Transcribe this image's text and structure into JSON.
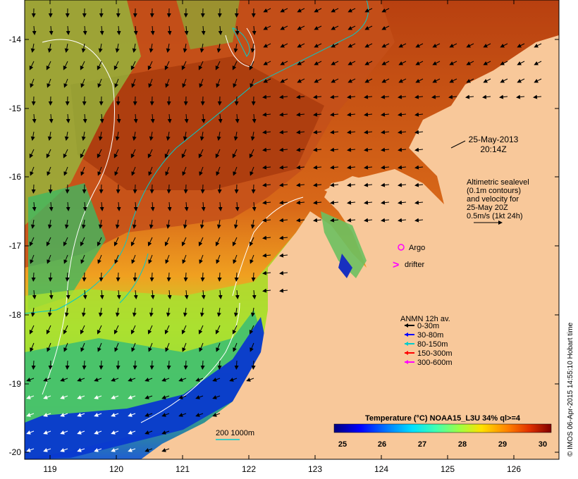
{
  "map": {
    "date_label": "25-May-2013",
    "time_label": "20:14Z",
    "altimetry_note": [
      "Altimetric sealevel",
      "(0.1m contours)",
      "and velocity for",
      "25-May 20Z",
      "0.5m/s (1kt 24h)"
    ],
    "argo_label": "Argo",
    "drifter_label": "drifter",
    "anmn_title": "ANMN 12h av.",
    "anmn_legend": [
      {
        "label": "0-30m",
        "color": "#000000"
      },
      {
        "label": "30-80m",
        "color": "#0000ff"
      },
      {
        "label": "80-150m",
        "color": "#00cccc"
      },
      {
        "label": "150-300m",
        "color": "#ff0000"
      },
      {
        "label": "300-600m",
        "color": "#ff00ff"
      }
    ],
    "scale_label": "200  1000m",
    "colorbar_title": "Temperature (°C) NOAA15_L3U 34% ql>=4",
    "colorbar_ticks": [
      "25",
      "26",
      "27",
      "28",
      "29",
      "30"
    ],
    "colorbar_colors": [
      "#00007f",
      "#0000ff",
      "#0080ff",
      "#00e0ff",
      "#40ffb0",
      "#a0ff40",
      "#ffe000",
      "#ff8000",
      "#e03000",
      "#800000"
    ],
    "credit": "© IMOS 06-Apr-2015 14:55:10 Hobart time",
    "x_ticks": [
      "119",
      "120",
      "121",
      "122",
      "123",
      "124",
      "125",
      "126"
    ],
    "y_ticks": [
      "-14",
      "-15",
      "-16",
      "-17",
      "-18",
      "-19",
      "-20"
    ],
    "colors": {
      "land": "#f8c89a",
      "warm_sea": "#c04a10",
      "mid_sea": "#e07818",
      "cool_sea": "#60d060",
      "cold_sea": "#1830c0",
      "argo": "#ff00ff",
      "contour": "#00cccc"
    }
  }
}
